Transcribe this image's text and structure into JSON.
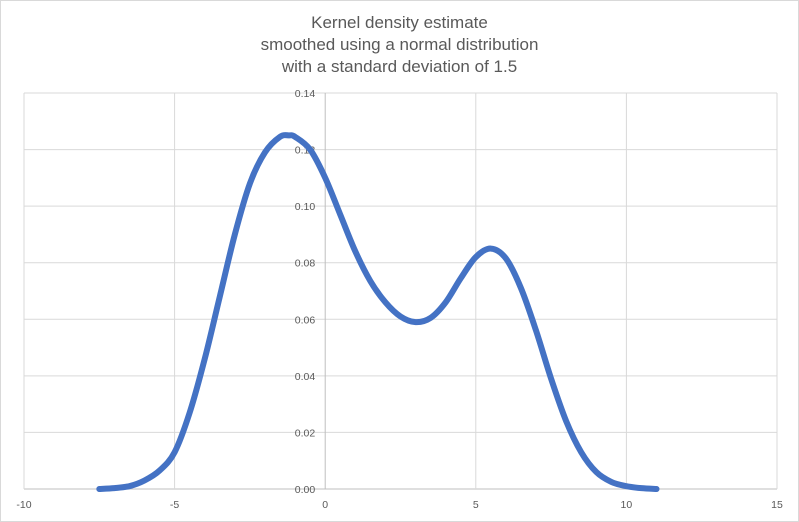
{
  "chart_data": {
    "type": "line",
    "title_lines": [
      "Kernel density estimate",
      "smoothed using a normal distribution",
      "with a standard deviation of 1.5"
    ],
    "xlabel": "",
    "ylabel": "",
    "xlim": [
      -10,
      15
    ],
    "ylim": [
      0,
      0.14
    ],
    "x_ticks": [
      -10,
      -5,
      0,
      5,
      10,
      15
    ],
    "x_tick_labels": [
      "-10",
      "-5",
      "0",
      "5",
      "10",
      "15"
    ],
    "y_ticks": [
      0,
      0.02,
      0.04,
      0.06,
      0.08,
      0.1,
      0.12,
      0.14
    ],
    "y_tick_labels": [
      "0.00",
      "0.02",
      "0.04",
      "0.06",
      "0.08",
      "0.10",
      "0.12",
      "0.14"
    ],
    "grid": true,
    "legend": "none",
    "line_color": "#4472C4",
    "series": [
      {
        "x": [
          -7.5,
          -7.0,
          -6.5,
          -6.0,
          -5.5,
          -5.0,
          -4.5,
          -4.0,
          -3.5,
          -3.0,
          -2.5,
          -2.0,
          -1.5,
          -1.2,
          -1.0,
          -0.5,
          0.0,
          0.5,
          1.0,
          1.5,
          2.0,
          2.5,
          3.0,
          3.5,
          4.0,
          4.5,
          5.0,
          5.5,
          6.0,
          6.5,
          7.0,
          7.5,
          8.0,
          8.5,
          9.0,
          9.5,
          10.0,
          10.5,
          11.0
        ],
        "y": [
          0.0,
          0.0003,
          0.001,
          0.003,
          0.0065,
          0.013,
          0.027,
          0.046,
          0.068,
          0.09,
          0.108,
          0.119,
          0.1245,
          0.125,
          0.1245,
          0.12,
          0.11,
          0.097,
          0.084,
          0.0735,
          0.066,
          0.061,
          0.059,
          0.0605,
          0.066,
          0.0745,
          0.082,
          0.085,
          0.0815,
          0.071,
          0.056,
          0.039,
          0.024,
          0.013,
          0.006,
          0.0025,
          0.001,
          0.0003,
          0.0
        ]
      }
    ]
  }
}
